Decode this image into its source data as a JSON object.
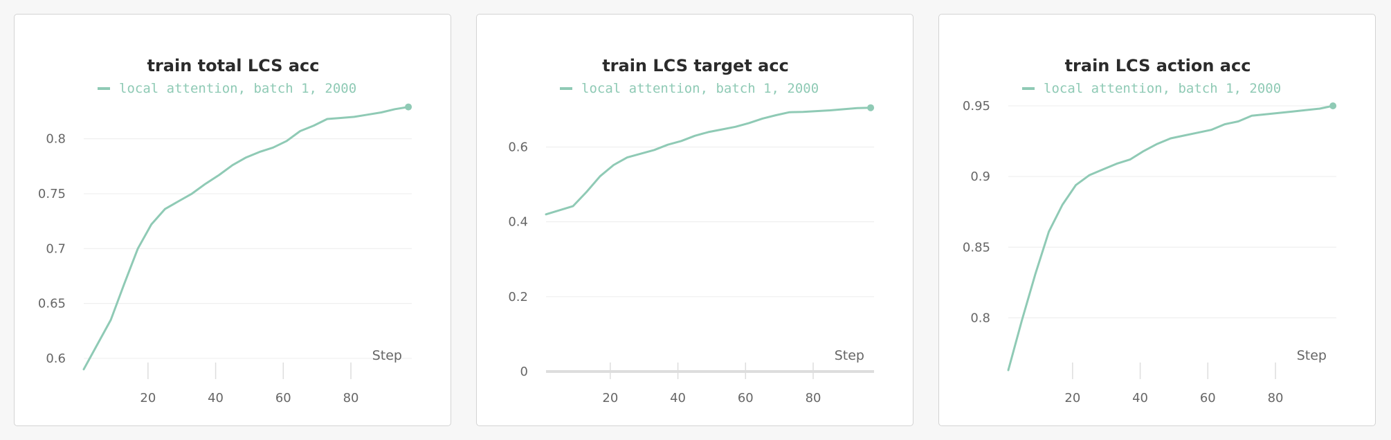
{
  "chart_data": [
    {
      "type": "line",
      "title": "train total LCS acc",
      "xlabel": "Step",
      "ylabel": "",
      "xlim": [
        1,
        98
      ],
      "ylim": [
        0.588,
        0.83
      ],
      "xticks": [
        20,
        40,
        60,
        80
      ],
      "yticks": [
        0.6,
        0.65,
        0.7,
        0.75,
        0.8
      ],
      "ytick_labels": [
        "0.6",
        "0.65",
        "0.7",
        "0.75",
        "0.8"
      ],
      "grid": true,
      "legend": "top",
      "series": [
        {
          "name": "local attention, batch 1, 2000",
          "color": "#8fcab5",
          "x": [
            1,
            9,
            13,
            17,
            21,
            25,
            29,
            33,
            37,
            41,
            45,
            49,
            53,
            57,
            61,
            65,
            69,
            73,
            77,
            81,
            85,
            89,
            93,
            97
          ],
          "y": [
            0.59,
            0.635,
            0.668,
            0.7,
            0.722,
            0.736,
            0.743,
            0.75,
            0.759,
            0.767,
            0.776,
            0.783,
            0.788,
            0.792,
            0.798,
            0.807,
            0.812,
            0.818,
            0.819,
            0.82,
            0.822,
            0.824,
            0.827,
            0.829
          ]
        }
      ]
    },
    {
      "type": "line",
      "title": "train LCS target acc",
      "xlabel": "Step",
      "ylabel": "",
      "xlim": [
        1,
        98
      ],
      "ylim": [
        0,
        0.71
      ],
      "xticks": [
        20,
        40,
        60,
        80
      ],
      "yticks": [
        0,
        0.2,
        0.4,
        0.6
      ],
      "ytick_labels": [
        "0",
        "0.2",
        "0.4",
        "0.6"
      ],
      "grid": true,
      "legend": "top",
      "series": [
        {
          "name": "local attention, batch 1, 2000",
          "color": "#8fcab5",
          "x": [
            1,
            9,
            13,
            17,
            21,
            25,
            29,
            33,
            37,
            41,
            45,
            49,
            53,
            57,
            61,
            65,
            69,
            73,
            77,
            81,
            85,
            89,
            93,
            97
          ],
          "y": [
            0.42,
            0.442,
            0.48,
            0.522,
            0.552,
            0.572,
            0.582,
            0.592,
            0.606,
            0.616,
            0.63,
            0.64,
            0.647,
            0.654,
            0.664,
            0.676,
            0.685,
            0.693,
            0.694,
            0.696,
            0.698,
            0.701,
            0.704,
            0.705
          ]
        }
      ]
    },
    {
      "type": "line",
      "title": "train LCS action acc",
      "xlabel": "Step",
      "ylabel": "",
      "xlim": [
        1,
        98
      ],
      "ylim": [
        0.762,
        0.95
      ],
      "xticks": [
        20,
        40,
        60,
        80
      ],
      "yticks": [
        0.8,
        0.85,
        0.9,
        0.95
      ],
      "ytick_labels": [
        "0.8",
        "0.85",
        "0.9",
        "0.95"
      ],
      "grid": true,
      "legend": "top",
      "series": [
        {
          "name": "local attention, batch 1, 2000",
          "color": "#8fcab5",
          "x": [
            1,
            5,
            9,
            13,
            17,
            21,
            25,
            29,
            33,
            37,
            41,
            45,
            49,
            53,
            57,
            61,
            65,
            69,
            73,
            77,
            81,
            85,
            89,
            93,
            97
          ],
          "y": [
            0.763,
            0.798,
            0.831,
            0.861,
            0.88,
            0.894,
            0.901,
            0.905,
            0.909,
            0.912,
            0.918,
            0.923,
            0.927,
            0.929,
            0.931,
            0.933,
            0.937,
            0.939,
            0.943,
            0.944,
            0.945,
            0.946,
            0.947,
            0.948,
            0.95
          ]
        }
      ]
    }
  ]
}
